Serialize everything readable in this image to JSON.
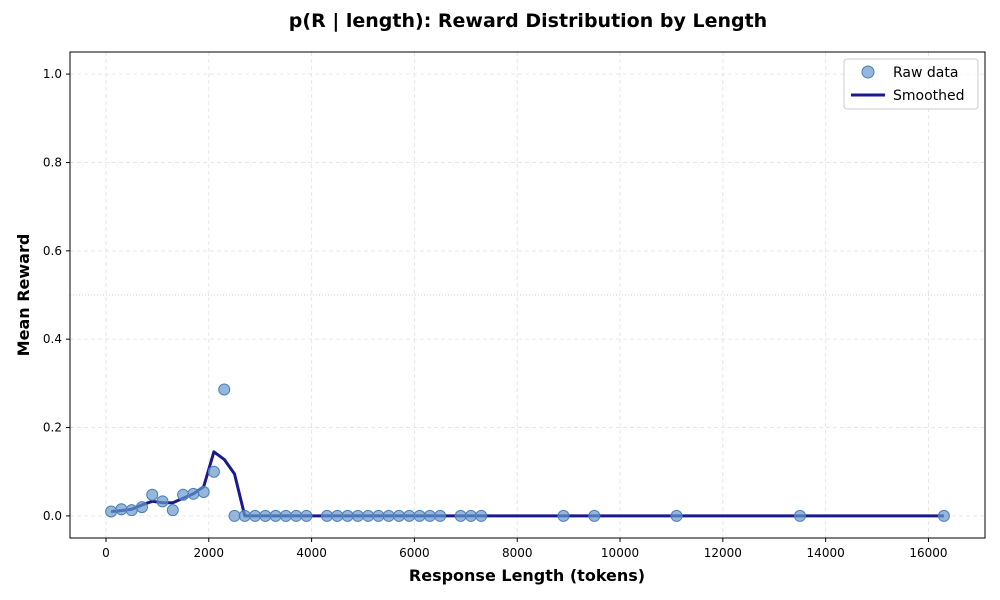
{
  "chart_data": {
    "type": "line",
    "title": "p(R | length): Reward Distribution by Length",
    "xlabel": "Response Length (tokens)",
    "ylabel": "Mean Reward",
    "xlim": [
      -700,
      17100
    ],
    "ylim": [
      -0.05,
      1.05
    ],
    "x_ticks": [
      0,
      2000,
      4000,
      6000,
      8000,
      10000,
      12000,
      14000,
      16000
    ],
    "y_ticks": [
      0.0,
      0.2,
      0.4,
      0.6,
      0.8,
      1.0
    ],
    "x_tick_labels": [
      "0",
      "2000",
      "4000",
      "6000",
      "8000",
      "10000",
      "12000",
      "14000",
      "16000"
    ],
    "y_tick_labels": [
      "0.0",
      "0.2",
      "0.4",
      "0.6",
      "0.8",
      "1.0"
    ],
    "grid": true,
    "reference_line_y": 0.5,
    "legend_position": "upper right",
    "series": [
      {
        "name": "Raw data",
        "style": "markers",
        "color": "#6699cc",
        "x": [
          100,
          300,
          500,
          700,
          900,
          1100,
          1300,
          1500,
          1700,
          1900,
          2100,
          2300,
          2500,
          2700,
          2900,
          3100,
          3300,
          3500,
          3700,
          3900,
          4300,
          4500,
          4700,
          4900,
          5100,
          5300,
          5500,
          5700,
          5900,
          6100,
          6300,
          6500,
          6900,
          7100,
          7300,
          8900,
          9500,
          11100,
          13500,
          16300
        ],
        "values": [
          0.01,
          0.015,
          0.013,
          0.02,
          0.048,
          0.033,
          0.013,
          0.048,
          0.05,
          0.054,
          0.1,
          0.286,
          0,
          0,
          0,
          0,
          0,
          0,
          0,
          0,
          0,
          0,
          0,
          0,
          0,
          0,
          0,
          0,
          0,
          0,
          0,
          0,
          0,
          0,
          0,
          0,
          0,
          0,
          0,
          0
        ]
      },
      {
        "name": "Smoothed",
        "style": "line",
        "color": "#1a1a8c",
        "x": [
          100,
          300,
          500,
          700,
          900,
          1100,
          1300,
          1500,
          1700,
          1900,
          2100,
          2300,
          2500,
          2700,
          2900,
          3100,
          3300,
          3500,
          3700,
          3900,
          4300,
          4500,
          4700,
          4900,
          5100,
          5300,
          5500,
          5700,
          5900,
          6100,
          6300,
          6500,
          6900,
          7100,
          7300,
          8900,
          9500,
          11100,
          13500,
          16300
        ],
        "values": [
          0.01,
          0.012,
          0.015,
          0.025,
          0.033,
          0.03,
          0.03,
          0.04,
          0.05,
          0.066,
          0.145,
          0.128,
          0.095,
          0,
          0,
          0,
          0,
          0,
          0,
          0,
          0,
          0,
          0,
          0,
          0,
          0,
          0,
          0,
          0,
          0,
          0,
          0,
          0,
          0,
          0,
          0,
          0,
          0,
          0,
          0
        ]
      }
    ]
  },
  "legend": {
    "items": [
      {
        "label": "Raw data",
        "icon": "circle-marker-icon"
      },
      {
        "label": "Smoothed",
        "icon": "line-icon"
      }
    ]
  }
}
